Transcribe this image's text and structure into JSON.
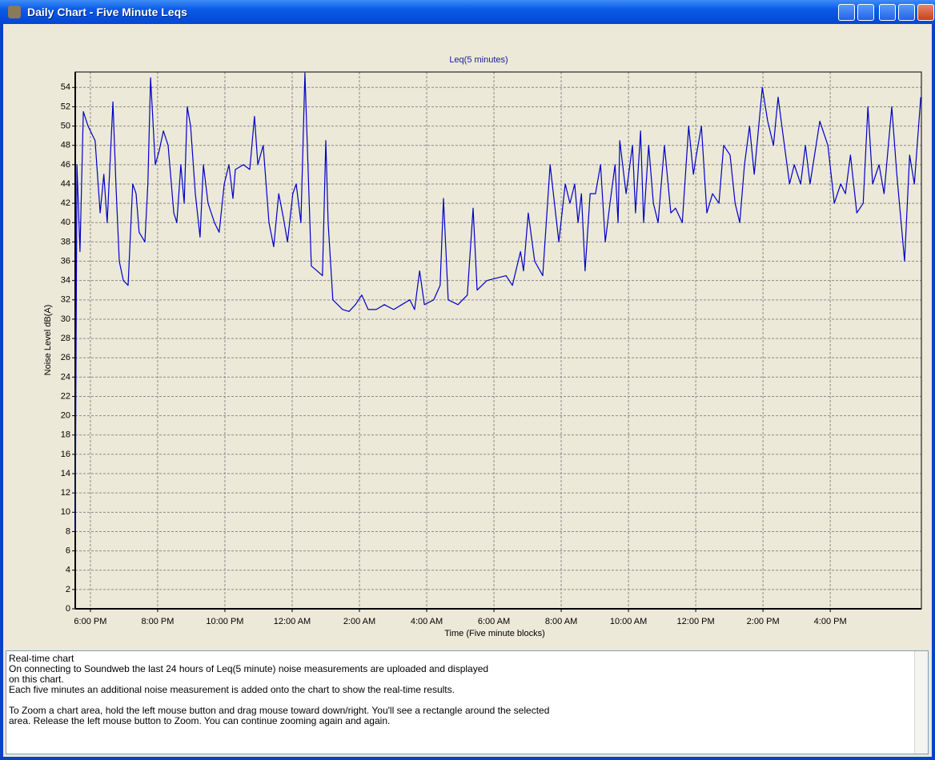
{
  "window": {
    "title": "Daily Chart - Five Minute Leqs"
  },
  "chart_data": {
    "type": "line",
    "title": "Leq(5 minutes)",
    "x_label": "Time (Five minute blocks)",
    "y_label": "Noise Level dB(A)",
    "xlim": [
      -0.45,
      24.71
    ],
    "ylim": [
      0,
      55.6
    ],
    "xticks": [
      {
        "value": 0,
        "label": "6:00 PM"
      },
      {
        "value": 2,
        "label": "8:00 PM"
      },
      {
        "value": 4,
        "label": "10:00 PM"
      },
      {
        "value": 6,
        "label": "12:00 AM"
      },
      {
        "value": 8,
        "label": "2:00 AM"
      },
      {
        "value": 10,
        "label": "4:00 AM"
      },
      {
        "value": 12,
        "label": "6:00 AM"
      },
      {
        "value": 14,
        "label": "8:00 AM"
      },
      {
        "value": 16,
        "label": "10:00 AM"
      },
      {
        "value": 18,
        "label": "12:00 PM"
      },
      {
        "value": 20,
        "label": "2:00 PM"
      },
      {
        "value": 22,
        "label": "4:00 PM"
      }
    ],
    "yticks": [
      0,
      2,
      4,
      6,
      8,
      10,
      12,
      14,
      16,
      18,
      20,
      22,
      24,
      26,
      28,
      30,
      32,
      34,
      36,
      38,
      40,
      42,
      44,
      46,
      48,
      50,
      52,
      54
    ],
    "grid": true,
    "series": [
      {
        "name": "Leq(5 minutes)",
        "color": "#0000c8",
        "x": [
          -0.45,
          -0.4,
          -0.31,
          -0.21,
          -0.07,
          0.14,
          0.29,
          0.4,
          0.5,
          0.67,
          0.76,
          0.86,
          0.98,
          1.12,
          1.26,
          1.36,
          1.45,
          1.62,
          1.71,
          1.79,
          1.93,
          2.05,
          2.17,
          2.31,
          2.48,
          2.57,
          2.69,
          2.79,
          2.88,
          2.98,
          3.12,
          3.26,
          3.36,
          3.5,
          3.69,
          3.83,
          3.98,
          4.12,
          4.24,
          4.31,
          4.55,
          4.74,
          4.88,
          4.98,
          5.14,
          5.31,
          5.45,
          5.6,
          5.74,
          5.86,
          6.02,
          6.12,
          6.26,
          6.38,
          6.48,
          6.57,
          6.74,
          6.9,
          7.0,
          7.07,
          7.21,
          7.5,
          7.69,
          7.88,
          8.07,
          8.26,
          8.5,
          8.74,
          9.02,
          9.26,
          9.5,
          9.64,
          9.79,
          9.93,
          10.21,
          10.4,
          10.5,
          10.64,
          10.93,
          11.21,
          11.38,
          11.5,
          11.79,
          12.36,
          12.55,
          12.79,
          12.88,
          13.02,
          13.21,
          13.45,
          13.67,
          13.93,
          14.12,
          14.26,
          14.4,
          14.5,
          14.6,
          14.71,
          14.86,
          15.02,
          15.17,
          15.31,
          15.45,
          15.6,
          15.69,
          15.74,
          15.93,
          16.12,
          16.21,
          16.36,
          16.45,
          16.6,
          16.74,
          16.88,
          17.07,
          17.26,
          17.4,
          17.6,
          17.79,
          17.93,
          18.02,
          18.17,
          18.33,
          18.5,
          18.69,
          18.83,
          19.02,
          19.17,
          19.31,
          19.45,
          19.6,
          19.74,
          19.98,
          20.14,
          20.31,
          20.45,
          20.6,
          20.79,
          20.93,
          21.12,
          21.26,
          21.4,
          21.69,
          21.93,
          22.12,
          22.31,
          22.45,
          22.6,
          22.79,
          22.98,
          23.12,
          23.26,
          23.45,
          23.6,
          23.83,
          23.98,
          24.21,
          24.36,
          24.5,
          24.69
        ],
        "values": [
          8,
          46,
          37,
          51.5,
          50,
          48.5,
          41,
          45,
          40,
          52.5,
          44,
          36,
          34,
          33.5,
          44,
          43,
          39,
          38,
          44,
          55,
          46,
          47.5,
          49.5,
          48,
          41,
          40,
          46,
          42,
          52,
          50,
          43,
          38.5,
          46,
          42,
          40,
          39,
          44,
          46,
          42.5,
          45.5,
          46,
          45.5,
          51,
          46,
          48,
          40,
          37.5,
          43,
          40.5,
          38,
          43,
          44,
          40,
          55.5,
          45,
          35.5,
          35,
          34.5,
          48.5,
          40,
          32,
          31,
          30.8,
          31.5,
          32.5,
          31,
          31,
          31.5,
          31,
          31.5,
          32,
          31,
          35,
          31.5,
          32,
          33.5,
          42.5,
          32,
          31.5,
          32.5,
          41.5,
          33,
          34,
          34.5,
          33.5,
          37,
          35,
          41,
          36,
          34.5,
          46,
          38,
          44,
          42,
          44,
          40,
          43,
          35,
          43,
          43,
          46,
          38,
          42,
          46,
          40,
          48.5,
          43,
          48,
          41,
          49.5,
          40,
          48,
          42,
          40,
          48,
          41,
          41.5,
          40,
          50,
          45,
          47,
          50,
          41,
          43,
          42,
          48,
          47,
          42,
          40,
          46,
          50,
          45,
          54,
          50.5,
          48,
          53,
          49,
          44,
          46,
          44,
          48,
          44,
          50.5,
          48,
          42,
          44,
          43,
          47,
          41,
          42,
          52,
          44,
          46,
          43,
          52,
          45,
          36,
          47,
          44,
          53
        ]
      }
    ]
  },
  "help_text": {
    "paragraphs": [
      [
        "Real-time chart",
        "On connecting to Soundweb the last 24 hours of Leq(5 minute) noise measurements are uploaded and displayed",
        "on this chart.",
        "Each five minutes an additional noise measurement is added onto the chart to show the real-time results."
      ],
      [
        "To Zoom a chart area, hold the left mouse button and drag mouse toward down/right. You'll see a rectangle around the selected",
        "area. Release the left mouse button to Zoom. You can continue zooming again and again."
      ]
    ]
  }
}
